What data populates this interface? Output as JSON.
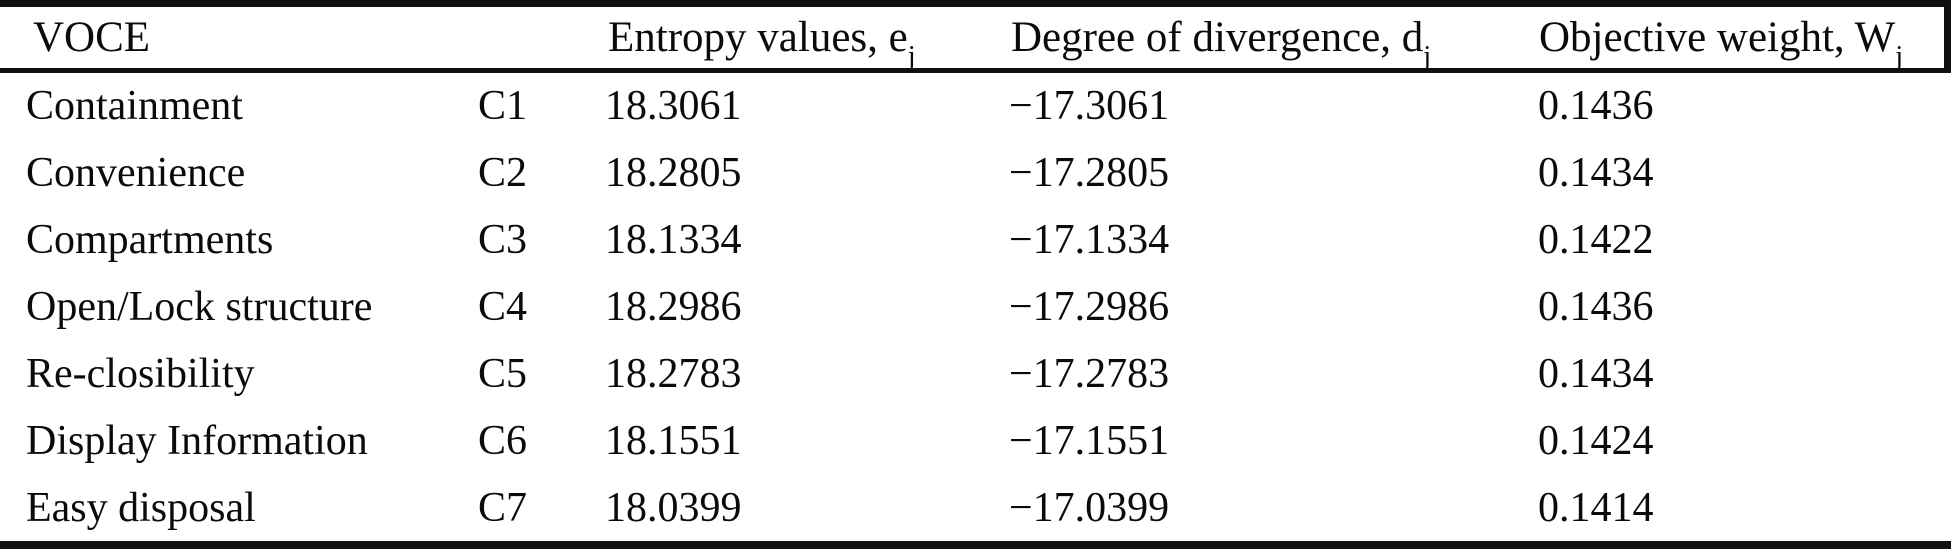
{
  "colors": {
    "text": "#0b0b0b",
    "rule": "#101010",
    "background": "#ffffff"
  },
  "table": {
    "headers": {
      "voce": "VOCE",
      "entropy_base": "Entropy values, e",
      "entropy_sub": "j",
      "divergence_base": "Degree of divergence, d",
      "divergence_sub": "j",
      "weight_base": "Objective weight, W",
      "weight_sub": "j"
    },
    "rows": [
      {
        "name": "Containment",
        "code": "C1",
        "entropy": "18.3061",
        "divergence": "−17.3061",
        "weight": "0.1436"
      },
      {
        "name": "Convenience",
        "code": "C2",
        "entropy": "18.2805",
        "divergence": "−17.2805",
        "weight": "0.1434"
      },
      {
        "name": "Compartments",
        "code": "C3",
        "entropy": "18.1334",
        "divergence": "−17.1334",
        "weight": "0.1422"
      },
      {
        "name": "Open/Lock structure",
        "code": "C4",
        "entropy": "18.2986",
        "divergence": "−17.2986",
        "weight": "0.1436"
      },
      {
        "name": "Re-closibility",
        "code": "C5",
        "entropy": "18.2783",
        "divergence": "−17.2783",
        "weight": "0.1434"
      },
      {
        "name": "Display Information",
        "code": "C6",
        "entropy": "18.1551",
        "divergence": "−17.1551",
        "weight": "0.1424"
      },
      {
        "name": "Easy disposal",
        "code": "C7",
        "entropy": "18.0399",
        "divergence": "−17.0399",
        "weight": "0.1414"
      }
    ]
  }
}
